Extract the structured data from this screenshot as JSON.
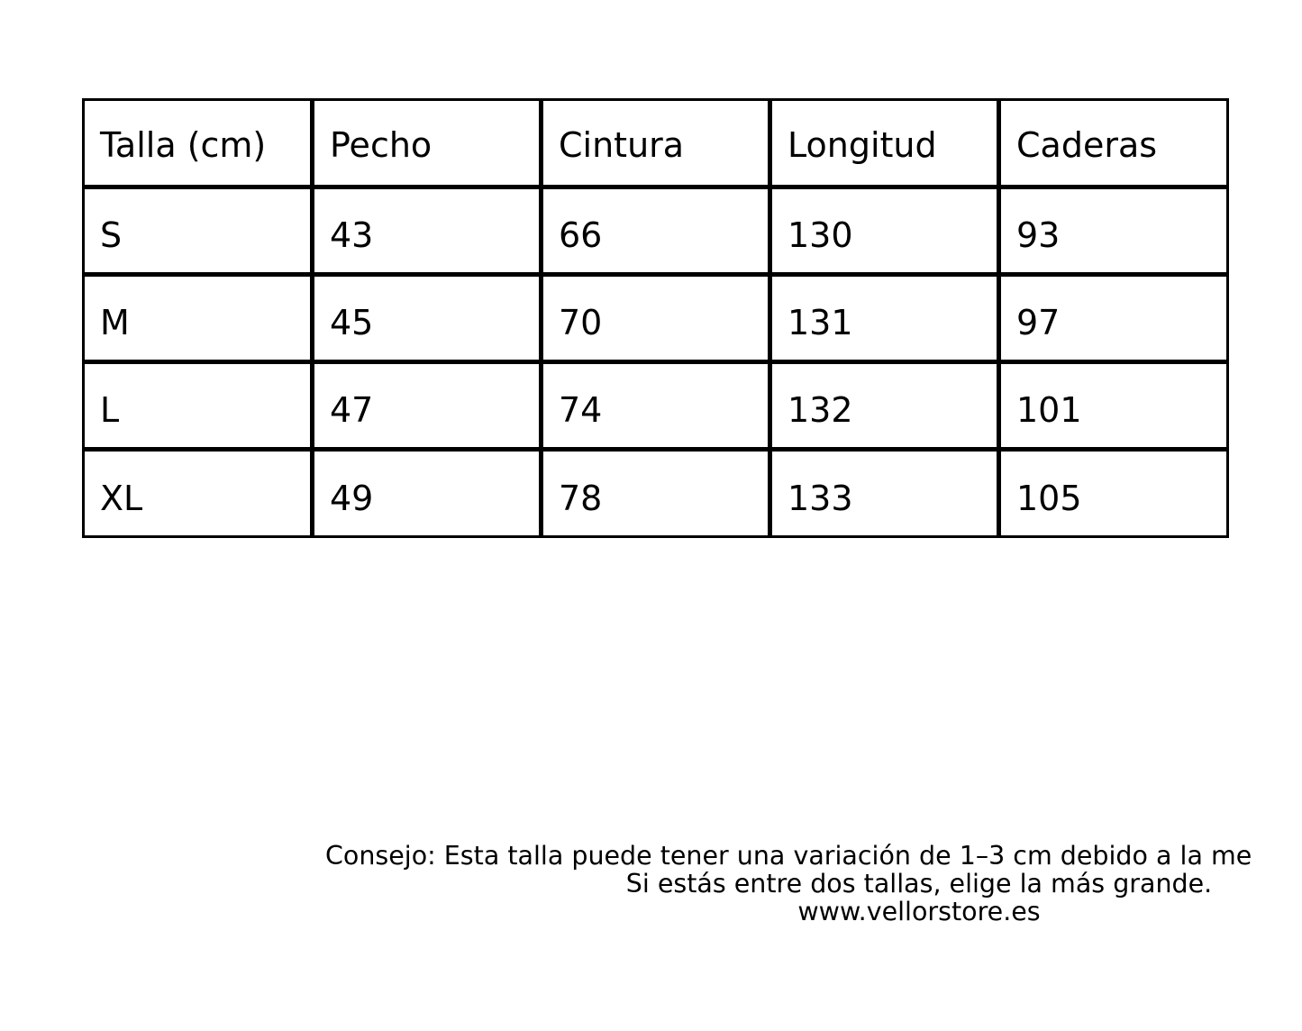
{
  "table": {
    "headers": [
      "Talla (cm)",
      "Pecho",
      "Cintura",
      "Longitud",
      "Caderas"
    ],
    "rows": [
      [
        "S",
        "43",
        "66",
        "130",
        "93"
      ],
      [
        "M",
        "45",
        "70",
        "131",
        "97"
      ],
      [
        "L",
        "47",
        "74",
        "132",
        "101"
      ],
      [
        "XL",
        "49",
        "78",
        "133",
        "105"
      ]
    ]
  },
  "footer": {
    "line1": "Consejo: Esta talla puede tener una variación de 1–3 cm debido a la me",
    "line2": "Si estás entre dos tallas, elige la más grande.",
    "line3": "www.vellorstore.es"
  }
}
